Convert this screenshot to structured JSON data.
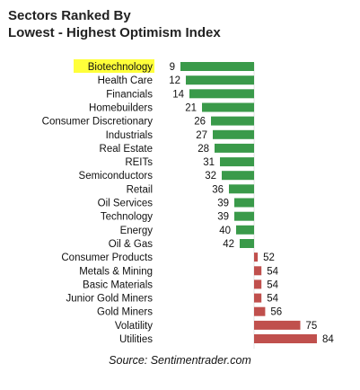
{
  "chart_data": {
    "type": "bar",
    "orientation": "horizontal",
    "title": "Sectors Ranked By\nLowest - Highest Optimism Index",
    "title_lines": [
      "Sectors Ranked By",
      "Lowest - Highest Optimism Index"
    ],
    "categories": [
      "Biotechnology",
      "Health Care",
      "Financials",
      "Homebuilders",
      "Consumer Discretionary",
      "Industrials",
      "Real Estate",
      "REITs",
      "Semiconductors",
      "Retail",
      "Oil Services",
      "Technology",
      "Energy",
      "Oil & Gas",
      "Consumer Products",
      "Metals & Mining",
      "Basic Materials",
      "Junior Gold Miners",
      "Gold Miners",
      "Volatility",
      "Utilities"
    ],
    "values": [
      9,
      12,
      14,
      21,
      26,
      27,
      28,
      31,
      32,
      36,
      39,
      39,
      40,
      42,
      52,
      54,
      54,
      54,
      56,
      75,
      84
    ],
    "highlighted_category": "Biotechnology",
    "baseline": 50,
    "colors": {
      "below_baseline": "#3a9a4a",
      "above_baseline": "#c0504d",
      "highlight": "#ffff3a",
      "title": "#222222"
    },
    "source": "Source: Sentimentrader.com"
  }
}
